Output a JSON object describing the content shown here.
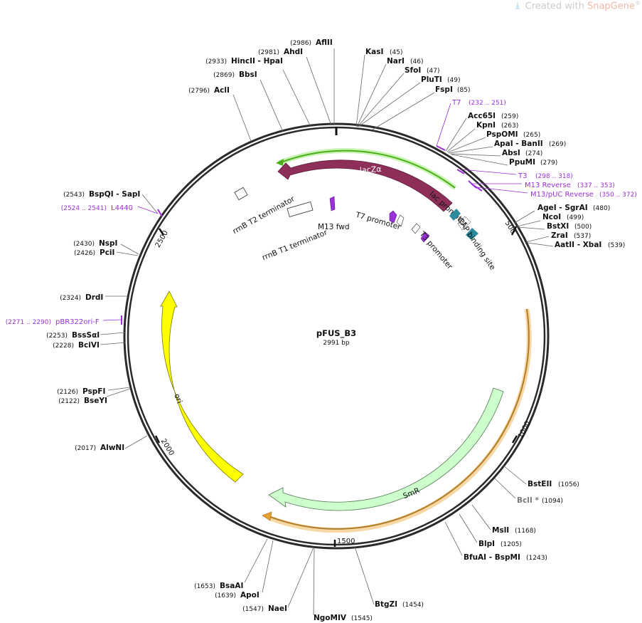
{
  "watermark": {
    "text": "Created with ",
    "brand": "SnapGene",
    "reg": "®"
  },
  "plasmid": {
    "name": "pFUS_B3",
    "length": "2991 bp"
  },
  "ticks": [
    {
      "label": "500"
    },
    {
      "label": "1000"
    },
    {
      "label": "1500"
    },
    {
      "label": "2000"
    },
    {
      "label": "2500"
    }
  ],
  "features": {
    "lacZ": "lacZα",
    "smr": "SmR",
    "ori": "ori",
    "rrnb_t2": "rrnB T2 terminator",
    "rrnb_t1": "rrnB T1 terminator",
    "m13fwd": "M13 fwd",
    "t7prom": "T7 promoter",
    "t3prom": "T3 promoter",
    "lacprom": "lac promoter",
    "cap": "CAP binding site"
  },
  "enzymes": [
    {
      "name": "AflII",
      "pos": "(2986)"
    },
    {
      "name": "AhdI",
      "pos": "(2981)"
    },
    {
      "name": "HincII  - HpaI",
      "pos": "(2933)"
    },
    {
      "name": "BbsI",
      "pos": "(2869)"
    },
    {
      "name": "AclI",
      "pos": "(2796)"
    },
    {
      "name": "KasI",
      "pos": "(45)"
    },
    {
      "name": "NarI",
      "pos": "(46)"
    },
    {
      "name": "SfoI",
      "pos": "(47)"
    },
    {
      "name": "PluTI",
      "pos": "(49)"
    },
    {
      "name": "FspI",
      "pos": "(85)"
    },
    {
      "name": "Acc65I",
      "pos": "(259)"
    },
    {
      "name": "KpnI",
      "pos": "(263)"
    },
    {
      "name": "PspOMI",
      "pos": "(265)"
    },
    {
      "name": "ApaI  - BanII",
      "pos": "(269)"
    },
    {
      "name": "AbsI",
      "pos": "(274)"
    },
    {
      "name": "PpuMI",
      "pos": "(279)"
    },
    {
      "name": "AgeI  - SgrAI",
      "pos": "(480)"
    },
    {
      "name": "NcoI",
      "pos": "(499)"
    },
    {
      "name": "BstXI",
      "pos": "(500)"
    },
    {
      "name": "ZraI",
      "pos": "(537)"
    },
    {
      "name": "AatII  - XbaI",
      "pos": "(539)"
    },
    {
      "name": "BstEII",
      "pos": "(1056)"
    },
    {
      "name": "BclI *",
      "pos": "(1094)"
    },
    {
      "name": "MslI",
      "pos": "(1168)"
    },
    {
      "name": "BlpI",
      "pos": "(1205)"
    },
    {
      "name": "BfuAI  - BspMI",
      "pos": "(1243)"
    },
    {
      "name": "BtgZI",
      "pos": "(1454)"
    },
    {
      "name": "NgoMIV",
      "pos": "(1545)"
    },
    {
      "name": "NaeI",
      "pos": "(1547)"
    },
    {
      "name": "ApoI",
      "pos": "(1639)"
    },
    {
      "name": "BsaAI",
      "pos": "(1653)"
    },
    {
      "name": "AlwNI",
      "pos": "(2017)"
    },
    {
      "name": "BseYI",
      "pos": "(2122)"
    },
    {
      "name": "PspFI",
      "pos": "(2126)"
    },
    {
      "name": "BciVI",
      "pos": "(2228)"
    },
    {
      "name": "BssSαI",
      "pos": "(2253)"
    },
    {
      "name": "DrdI",
      "pos": "(2324)"
    },
    {
      "name": "PciI",
      "pos": "(2426)"
    },
    {
      "name": "NspI",
      "pos": "(2430)"
    },
    {
      "name": "BspQI  - SapI",
      "pos": "(2543)"
    }
  ],
  "primers": [
    {
      "name": "T7",
      "range": "(232 .. 251)"
    },
    {
      "name": "T3",
      "range": "(298 .. 318)"
    },
    {
      "name": "M13 Reverse",
      "range": "(337 .. 353)"
    },
    {
      "name": "M13/pUC Reverse",
      "range": "(350 .. 372)"
    },
    {
      "name": "L4440",
      "range": "(2524 .. 2541)"
    },
    {
      "name": "pBR322ori-F",
      "range": "(2271 .. 2290)"
    }
  ],
  "colors": {
    "backbone": "#2a2a2a",
    "lacZ": "#8e2f5a",
    "smr": "#ccffcc",
    "ori": "#ffff00",
    "primer": "#9b30d9",
    "cap": "#2b8a9c",
    "promoter": "#8a2be2",
    "green_band": "#4caf1a",
    "orange_band": "#e8a030",
    "bcli_gray": "#777777"
  }
}
